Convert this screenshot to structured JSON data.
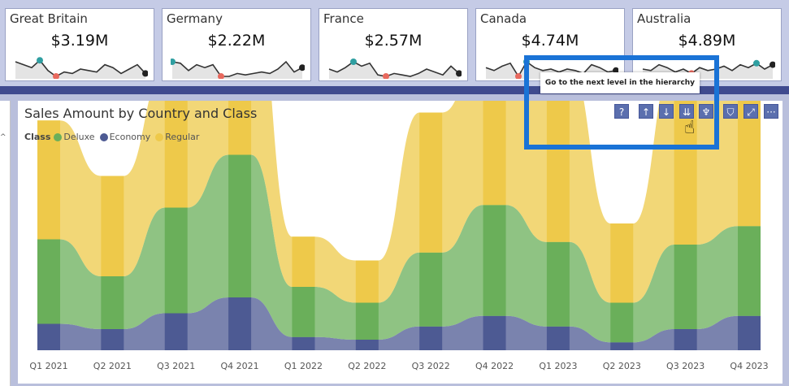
{
  "kpi_cards": [
    {
      "name": "Great Britain",
      "value": "$3.19M"
    },
    {
      "name": "Germany",
      "value": "$2.22M"
    },
    {
      "name": "France",
      "value": "$2.57M"
    },
    {
      "name": "Canada",
      "value": "$4.74M"
    },
    {
      "name": "Australia",
      "value": "$4.89M"
    }
  ],
  "tooltip": "Go to the next level in the hierarchy",
  "toolbar": {
    "icons": [
      "help-icon",
      "drill-up-icon",
      "drill-down-icon",
      "expand-next-level-icon",
      "expand-all-icon",
      "filter-icon",
      "focus-mode-icon",
      "more-options-icon"
    ],
    "labels": [
      "?",
      "↑",
      "↓",
      "⇊",
      "♆",
      "⛉",
      "⤢",
      "···"
    ]
  },
  "colors": {
    "deluxe": "#6aaf5a",
    "economy": "#4d5a93",
    "regular": "#eec94a",
    "accent": "#1a73d6",
    "sparkline_high": "#2f9fa1",
    "sparkline_low": "#e8695e"
  },
  "chart_data": {
    "type": "area",
    "title": "Sales Amount by Country and Class",
    "legend_title": "Class",
    "legend_position": "top-left",
    "categories": [
      "Q1 2021",
      "Q2 2021",
      "Q3 2021",
      "Q4 2021",
      "Q1 2022",
      "Q2 2022",
      "Q3 2022",
      "Q4 2022",
      "Q1 2023",
      "Q2 2023",
      "Q3 2023",
      "Q4 2023"
    ],
    "series": [
      {
        "name": "Economy",
        "values": [
          1.0,
          0.8,
          1.4,
          2.0,
          0.5,
          0.4,
          0.9,
          1.3,
          0.9,
          0.3,
          0.8,
          1.3
        ]
      },
      {
        "name": "Deluxe",
        "values": [
          3.2,
          2.0,
          4.0,
          5.4,
          1.9,
          1.4,
          2.8,
          4.2,
          3.2,
          1.5,
          3.2,
          3.4
        ]
      },
      {
        "name": "Regular",
        "values": [
          4.5,
          3.8,
          5.2,
          7.3,
          1.9,
          1.6,
          5.3,
          6.0,
          6.7,
          3.0,
          6.9,
          7.5
        ]
      }
    ],
    "stacked": true,
    "grid": false
  }
}
